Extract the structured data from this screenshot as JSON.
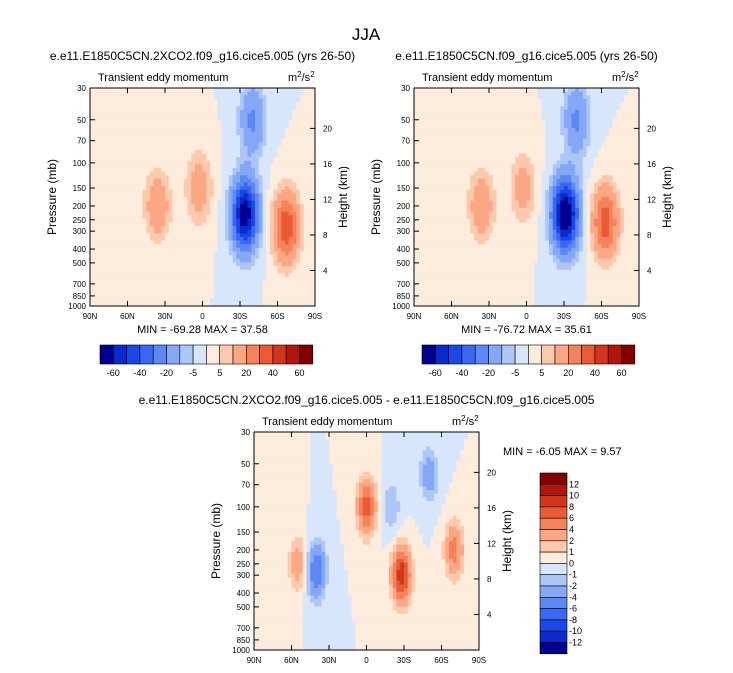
{
  "page": {
    "title": "JJA"
  },
  "chart_data": [
    {
      "type": "contour",
      "title": "e.e11.E1850C5CN.2XCO2.f09_g16.cice5.005 (yrs 26-50)",
      "left_label": "Transient eddy momentum",
      "units_base": "m",
      "units_exp1": "2",
      "units_mid": "/s",
      "units_exp2": "2",
      "ylabel": "Pressure (mb)",
      "ylabel_right": "Height (km)",
      "x_ticks": [
        "90N",
        "60N",
        "30N",
        "0",
        "30S",
        "60S",
        "90S"
      ],
      "x_lim": [
        90,
        -90
      ],
      "y_ticks": [
        "30",
        "50",
        "70",
        "100",
        "150",
        "200",
        "250",
        "300",
        "400",
        "500",
        "700",
        "850",
        "1000"
      ],
      "y_lim": [
        30,
        1000
      ],
      "height_ticks": [
        "20",
        "16",
        "12",
        "8",
        "4"
      ],
      "stats_text": "MIN = -69.28  MAX = 37.58",
      "min": -69.28,
      "max": 37.58,
      "features": [
        {
          "lat": 36,
          "p": 200,
          "value": 18
        },
        {
          "lat": 3,
          "p": 150,
          "value": 16
        },
        {
          "lat": -34,
          "p": 230,
          "value": -69.28
        },
        {
          "lat": -40,
          "p": 50,
          "value": -22
        },
        {
          "lat": -67,
          "p": 280,
          "value": 37.58
        }
      ]
    },
    {
      "type": "contour",
      "title": "e.e11.E1850C5CN.f09_g16.cice5.005 (yrs 26-50)",
      "left_label": "Transient eddy momentum",
      "units_base": "m",
      "units_exp1": "2",
      "units_mid": "/s",
      "units_exp2": "2",
      "ylabel": "Pressure (mb)",
      "ylabel_right": "Height (km)",
      "x_ticks": [
        "90N",
        "60N",
        "30N",
        "0",
        "30S",
        "60S",
        "90S"
      ],
      "x_lim": [
        90,
        -90
      ],
      "y_ticks": [
        "30",
        "50",
        "70",
        "100",
        "150",
        "200",
        "250",
        "300",
        "400",
        "500",
        "700",
        "850",
        "1000"
      ],
      "y_lim": [
        30,
        1000
      ],
      "height_ticks": [
        "20",
        "16",
        "12",
        "8",
        "4"
      ],
      "stats_text": "MIN = -76.72  MAX = 35.61",
      "min": -76.72,
      "max": 35.61,
      "features": [
        {
          "lat": 36,
          "p": 200,
          "value": 18
        },
        {
          "lat": 3,
          "p": 150,
          "value": 14
        },
        {
          "lat": -31,
          "p": 230,
          "value": -76.72
        },
        {
          "lat": -40,
          "p": 50,
          "value": -22
        },
        {
          "lat": -63,
          "p": 260,
          "value": 35.61
        }
      ]
    },
    {
      "type": "contour",
      "title": "e.e11.E1850C5CN.2XCO2.f09_g16.cice5.005 - e.e11.E1850C5CN.f09_g16.cice5.005",
      "left_label": "Transient eddy momentum",
      "units_base": "m",
      "units_exp1": "2",
      "units_mid": "/s",
      "units_exp2": "2",
      "ylabel": "Pressure (mb)",
      "ylabel_right": "Height (km)",
      "x_ticks": [
        "90N",
        "60N",
        "30N",
        "0",
        "30S",
        "60S",
        "90S"
      ],
      "x_lim": [
        90,
        -90
      ],
      "y_ticks": [
        "30",
        "50",
        "70",
        "100",
        "150",
        "200",
        "250",
        "300",
        "400",
        "500",
        "700",
        "850",
        "1000"
      ],
      "y_lim": [
        30,
        1000
      ],
      "height_ticks": [
        "20",
        "16",
        "12",
        "8",
        "4"
      ],
      "stats_text": "MIN =  -6.05  MAX =   9.57",
      "min": -6.05,
      "max": 9.57,
      "features": [
        {
          "lat": -28,
          "p": 300,
          "value": 9.57
        },
        {
          "lat": 0,
          "p": 100,
          "value": 7
        },
        {
          "lat": -70,
          "p": 200,
          "value": 5
        },
        {
          "lat": 55,
          "p": 250,
          "value": 3
        },
        {
          "lat": 40,
          "p": 280,
          "value": -6.05
        },
        {
          "lat": -20,
          "p": 100,
          "value": -2
        },
        {
          "lat": -50,
          "p": 60,
          "value": -3
        }
      ]
    }
  ],
  "colorbars": {
    "top": {
      "labels": [
        "-60",
        "-40",
        "-20",
        "-5",
        "5",
        "20",
        "40",
        "60"
      ],
      "levels": [
        -60,
        -50,
        -40,
        -30,
        -20,
        -10,
        -5,
        0,
        5,
        10,
        20,
        30,
        40,
        50,
        60
      ],
      "colors": [
        "#000090",
        "#0a2acc",
        "#1a48e8",
        "#3a68f2",
        "#5b88f5",
        "#85a8f6",
        "#adc6f8",
        "#d8e6fb",
        "#fdebdb",
        "#fcc9ad",
        "#fba784",
        "#f6825b",
        "#ea5a35",
        "#d3351c",
        "#b1150b",
        "#820000"
      ]
    },
    "bottom": {
      "labels": [
        "12",
        "10",
        "8",
        "6",
        "4",
        "2",
        "1",
        "0",
        "-1",
        "-2",
        "-4",
        "-6",
        "-8",
        "-10",
        "-12"
      ],
      "levels": [
        12,
        10,
        8,
        6,
        4,
        2,
        1,
        0,
        -1,
        -2,
        -4,
        -6,
        -8,
        -10,
        -12
      ],
      "colors": [
        "#820000",
        "#b1150b",
        "#d3351c",
        "#ea5a35",
        "#f6825b",
        "#fba784",
        "#fcc9ad",
        "#fdebdb",
        "#d8e6fb",
        "#adc6f8",
        "#85a8f6",
        "#5b88f5",
        "#3a68f2",
        "#1a48e8",
        "#0a2acc",
        "#000090"
      ]
    }
  }
}
